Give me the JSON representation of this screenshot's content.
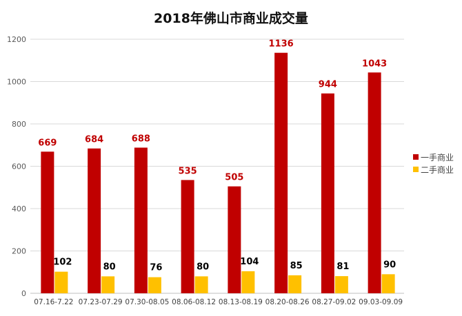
{
  "chart_data": {
    "type": "bar",
    "title": "2018年佛山市商业成交量",
    "xlabel": "",
    "ylabel": "",
    "ylim": [
      0,
      1200
    ],
    "yticks": [
      0,
      200,
      400,
      600,
      800,
      1000,
      1200
    ],
    "grid": true,
    "legend_position": "right",
    "categories": [
      "07.16-7.22",
      "07.23-07.29",
      "07.30-08.05",
      "08.06-08.12",
      "08.13-08.19",
      "08.20-08.26",
      "08.27-09.02",
      "09.03-09.09"
    ],
    "series": [
      {
        "name": "一手商业",
        "color": "#c00000",
        "label_color": "#c00000",
        "values": [
          669,
          684,
          688,
          535,
          505,
          1136,
          944,
          1043
        ]
      },
      {
        "name": "二手商业",
        "color": "#ffc000",
        "label_color": "#000000",
        "values": [
          102,
          80,
          76,
          80,
          104,
          85,
          81,
          90
        ]
      }
    ]
  }
}
